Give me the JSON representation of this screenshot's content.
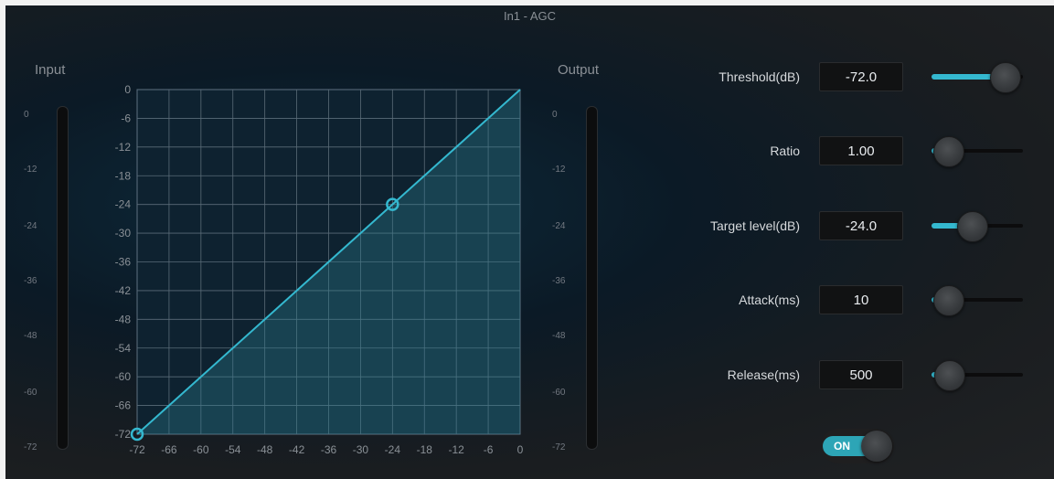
{
  "window": {
    "title": "In1 - AGC"
  },
  "meters": {
    "input_label": "Input",
    "output_label": "Output",
    "ticks": [
      "0",
      "-12",
      "-24",
      "-36",
      "-48",
      "-60",
      "-72"
    ]
  },
  "graph": {
    "x_ticks": [
      "-72",
      "-66",
      "-60",
      "-54",
      "-48",
      "-42",
      "-36",
      "-30",
      "-24",
      "-18",
      "-12",
      "-6",
      "0"
    ],
    "y_ticks": [
      "0",
      "-6",
      "-12",
      "-18",
      "-24",
      "-30",
      "-36",
      "-42",
      "-48",
      "-54",
      "-60",
      "-66",
      "-72"
    ],
    "range": [
      -72,
      0
    ],
    "curve_points": [
      [
        -72,
        -72
      ],
      [
        -24,
        -24
      ],
      [
        0,
        0
      ]
    ],
    "handles": [
      [
        -72,
        -72
      ],
      [
        -24,
        -24
      ]
    ],
    "accent": "#34b8cf"
  },
  "controls": [
    {
      "label": "Threshold(dB)",
      "value": "-72.0",
      "fill": 0.8
    },
    {
      "label": "Ratio",
      "value": "1.00",
      "fill": 0.18
    },
    {
      "label": "Target level(dB)",
      "value": "-24.0",
      "fill": 0.44
    },
    {
      "label": "Attack(ms)",
      "value": "10",
      "fill": 0.18
    },
    {
      "label": "Release(ms)",
      "value": "500",
      "fill": 0.19
    }
  ],
  "toggle": {
    "label": "ON",
    "state": "on"
  }
}
